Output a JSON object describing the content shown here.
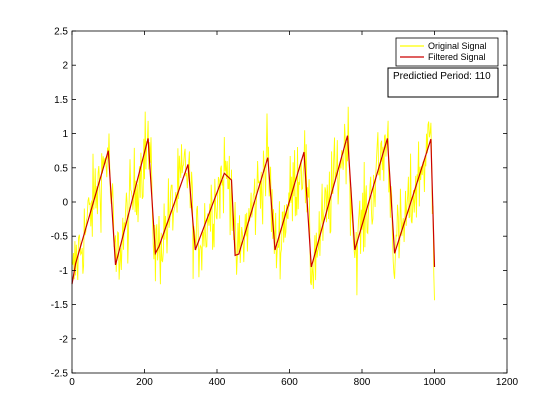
{
  "chart_data": {
    "type": "line",
    "title": "",
    "xlabel": "",
    "ylabel": "",
    "xlim": [
      0,
      1200
    ],
    "ylim": [
      -2.5,
      2.5
    ],
    "x_ticks": [
      0,
      200,
      400,
      600,
      800,
      1000,
      1200
    ],
    "y_ticks": [
      -2.5,
      -2,
      -1.5,
      -1,
      -0.5,
      0,
      0.5,
      1,
      1.5,
      2,
      2.5
    ],
    "x_tick_labels": [
      "0",
      "200",
      "400",
      "600",
      "800",
      "1000",
      "1200"
    ],
    "y_tick_labels": [
      "-2.5",
      "-2",
      "-1.5",
      "-1",
      "-0.5",
      "0",
      "0.5",
      "1",
      "1.5",
      "2",
      "2.5"
    ],
    "grid": false,
    "legend_position": "top-right",
    "annotation": "Predictied Period: 110",
    "series": [
      {
        "name": "Original Signal",
        "color": "#ffff00",
        "style": "noisy",
        "noise_amplitude": 0.42,
        "x": [
          0,
          10,
          100,
          120,
          210,
          230,
          240,
          320,
          340,
          420,
          440,
          450,
          460,
          540,
          560,
          640,
          660,
          760,
          780,
          870,
          890,
          990,
          1000
        ],
        "y": [
          -1.2,
          -0.9,
          0.75,
          -0.92,
          0.93,
          -0.75,
          -0.65,
          0.55,
          -0.7,
          0.42,
          0.32,
          -0.78,
          -0.76,
          0.65,
          -0.7,
          0.73,
          -0.95,
          0.97,
          -0.7,
          0.93,
          -0.75,
          0.92,
          -0.95
        ]
      },
      {
        "name": "Filtered Signal",
        "color": "#cc0000",
        "style": "line",
        "x": [
          0,
          10,
          100,
          120,
          210,
          230,
          240,
          320,
          340,
          420,
          440,
          450,
          460,
          540,
          560,
          640,
          660,
          760,
          780,
          870,
          890,
          990,
          1000
        ],
        "y": [
          -1.2,
          -0.9,
          0.75,
          -0.92,
          0.93,
          -0.75,
          -0.65,
          0.55,
          -0.7,
          0.42,
          0.32,
          -0.78,
          -0.76,
          0.65,
          -0.7,
          0.73,
          -0.95,
          0.97,
          -0.7,
          0.93,
          -0.75,
          0.92,
          -0.95
        ]
      }
    ]
  }
}
